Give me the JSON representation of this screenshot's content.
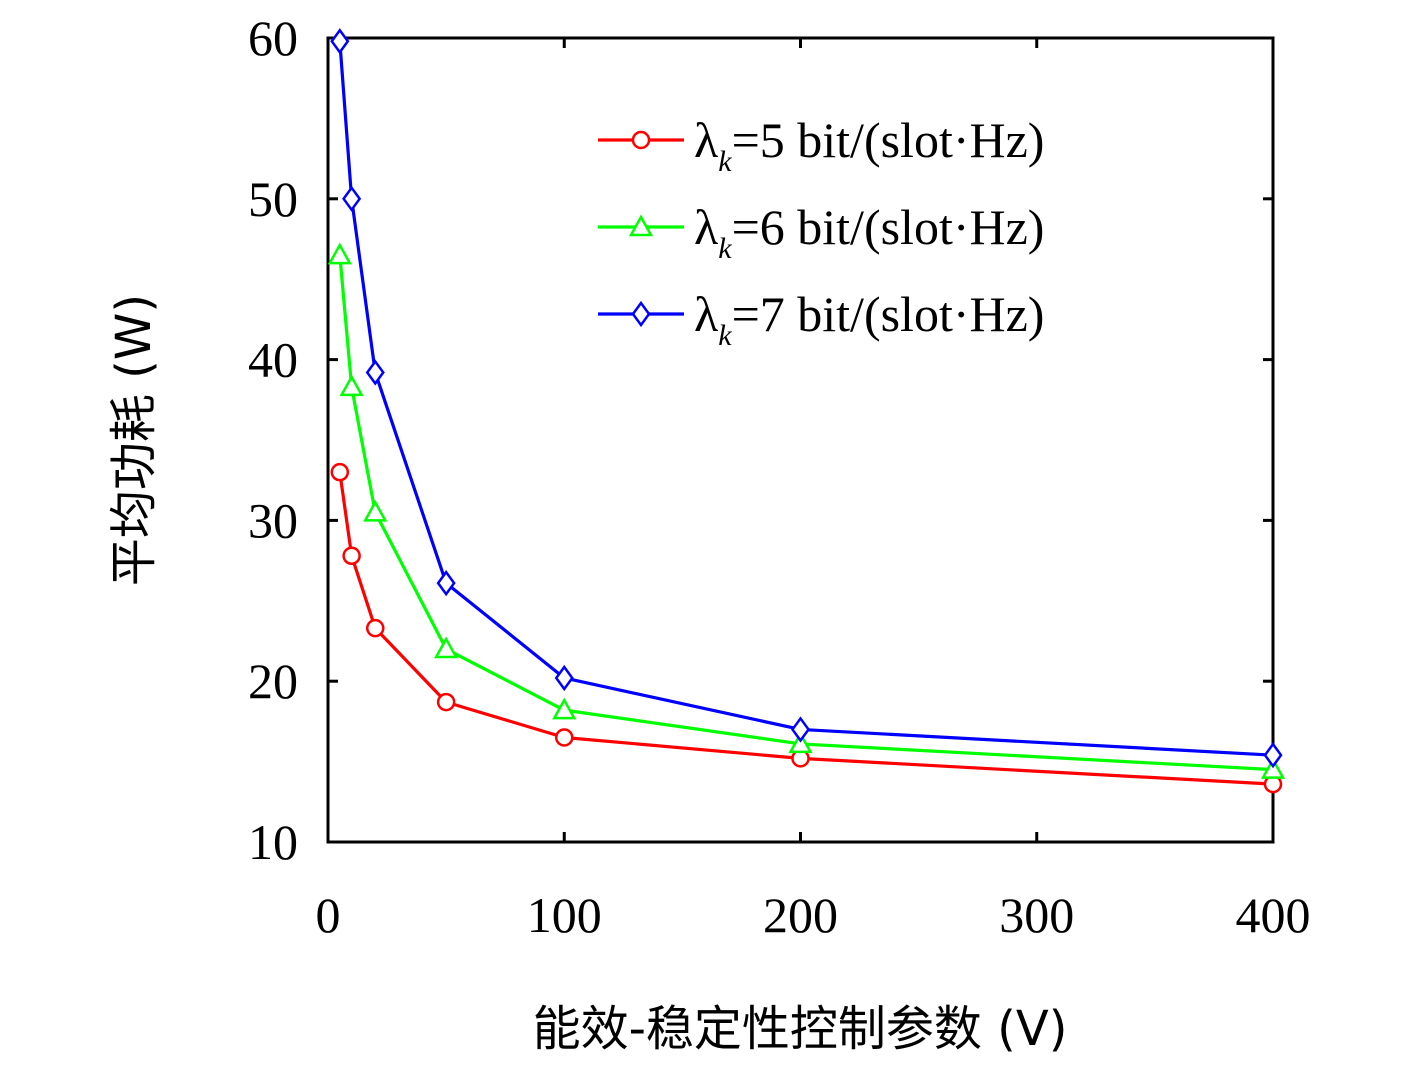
{
  "chart_data": {
    "type": "line",
    "xlabel": "能效-稳定性控制参数 (V)",
    "ylabel": "平均功耗 (W)",
    "xlim": [
      0,
      400
    ],
    "ylim": [
      10,
      60
    ],
    "xticks": [
      "0",
      "100",
      "200",
      "300",
      "400"
    ],
    "yticks": [
      "10",
      "20",
      "30",
      "40",
      "50",
      "60"
    ],
    "grid": false,
    "legend_position": "top-right",
    "x": [
      5,
      10,
      20,
      50,
      100,
      200,
      400
    ],
    "series": [
      {
        "name_prefix": "λ",
        "name_sub": "k",
        "name_rest": "=5 bit/(slot·Hz)",
        "color": "#ff0000",
        "marker": "circle",
        "values": [
          33.0,
          27.8,
          23.3,
          18.7,
          16.5,
          15.2,
          13.6
        ]
      },
      {
        "name_prefix": "λ",
        "name_sub": "k",
        "name_rest": "=6 bit/(slot·Hz)",
        "color": "#00ff00",
        "marker": "triangle",
        "values": [
          46.5,
          38.3,
          30.5,
          22.0,
          18.2,
          16.1,
          14.5
        ]
      },
      {
        "name_prefix": "λ",
        "name_sub": "k",
        "name_rest": "=7 bit/(slot·Hz)",
        "color": "#0000ff",
        "marker": "diamond",
        "values": [
          59.8,
          50.0,
          39.2,
          26.1,
          20.2,
          17.0,
          15.4
        ]
      }
    ]
  }
}
